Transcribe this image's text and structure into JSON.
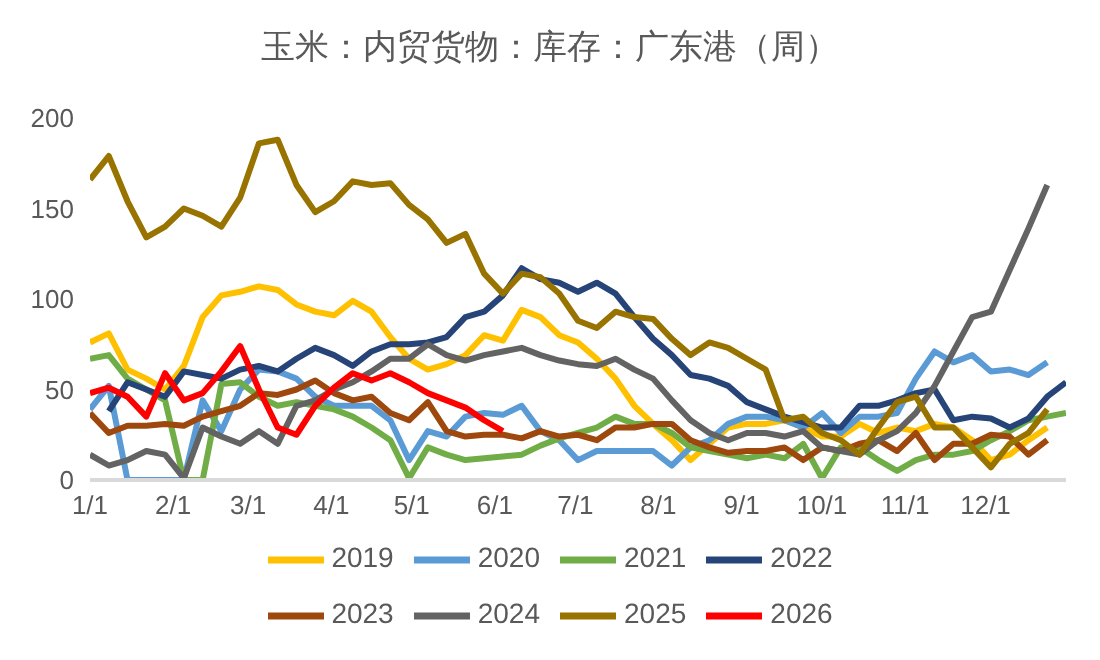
{
  "chart_data": {
    "type": "line",
    "title": "玉米：内贸货物：库存：广东港（周）",
    "x": [
      "--01-01",
      "--01-08",
      "--01-15",
      "--01-22",
      "--01-29",
      "--02-05",
      "--02-12",
      "--02-19",
      "--02-26",
      "--03-05",
      "--03-12",
      "--03-19",
      "--03-26",
      "--04-02",
      "--04-09",
      "--04-16",
      "--04-23",
      "--04-30",
      "--05-07",
      "--05-14",
      "--05-21",
      "--05-28",
      "--06-04",
      "--06-11",
      "--06-18",
      "--06-25",
      "--07-02",
      "--07-09",
      "--07-16",
      "--07-23",
      "--07-30",
      "--08-06",
      "--08-13",
      "--08-20",
      "--08-27",
      "--09-03",
      "--09-10",
      "--09-17",
      "--09-24",
      "--10-01",
      "--10-08",
      "--10-15",
      "--10-22",
      "--10-29",
      "--11-05",
      "--11-12",
      "--11-19",
      "--11-26",
      "--12-03",
      "--12-10",
      "--12-17",
      "--12-24",
      "--12-31"
    ],
    "xlim": [
      "--01-01",
      "--12-31"
    ],
    "xticks": [
      {
        "value": "--01-01",
        "label": "1/1"
      },
      {
        "value": "--02-01",
        "label": "2/1"
      },
      {
        "value": "--03-01",
        "label": "3/1"
      },
      {
        "value": "--04-01",
        "label": "4/1"
      },
      {
        "value": "--05-01",
        "label": "5/1"
      },
      {
        "value": "--06-01",
        "label": "6/1"
      },
      {
        "value": "--07-01",
        "label": "7/1"
      },
      {
        "value": "--08-01",
        "label": "8/1"
      },
      {
        "value": "--09-01",
        "label": "9/1"
      },
      {
        "value": "--10-01",
        "label": "10/1"
      },
      {
        "value": "--11-01",
        "label": "11/1"
      },
      {
        "value": "--12-01",
        "label": "12/1"
      }
    ],
    "ylim": [
      0,
      200
    ],
    "yticks": [
      0,
      50,
      100,
      150,
      200
    ],
    "grid": false,
    "legend": "bottom",
    "series": [
      {
        "name": "2019",
        "color": "#ffc000",
        "values": [
          76,
          81,
          61,
          56,
          50,
          63,
          90,
          102,
          104,
          107,
          105,
          97,
          93,
          91,
          99,
          93,
          79,
          67,
          61,
          64,
          69,
          80,
          77,
          94,
          90,
          80,
          76,
          67,
          56,
          41,
          31,
          22,
          11,
          20,
          29,
          31,
          31,
          33,
          29,
          24,
          24,
          31,
          26,
          29,
          27,
          31,
          29,
          22,
          11,
          14,
          22,
          29,
          null
        ]
      },
      {
        "name": "2020",
        "color": "#5b9bd5",
        "values": [
          39,
          52,
          0,
          0,
          0,
          0,
          44,
          27,
          50,
          61,
          60,
          56,
          46,
          41,
          41,
          41,
          33,
          11,
          27,
          24,
          35,
          37,
          36,
          41,
          27,
          22,
          11,
          16,
          16,
          16,
          16,
          8,
          18,
          22,
          31,
          35,
          35,
          33,
          29,
          37,
          26,
          35,
          35,
          37,
          56,
          71,
          65,
          69,
          60,
          61,
          58,
          65,
          null
        ]
      },
      {
        "name": "2021",
        "color": "#70ad47",
        "values": [
          67,
          69,
          56,
          50,
          44,
          0,
          0,
          53,
          54,
          46,
          41,
          43,
          41,
          39,
          35,
          29,
          22,
          1,
          18,
          14,
          11,
          12,
          13,
          14,
          19,
          23,
          26,
          29,
          35,
          31,
          31,
          26,
          18,
          16,
          14,
          12,
          14,
          12,
          20,
          1,
          18,
          18,
          11,
          5,
          11,
          14,
          14,
          16,
          22,
          27,
          33,
          35,
          37
        ]
      },
      {
        "name": "2022",
        "color": "#264478",
        "values": [
          null,
          38,
          54,
          50,
          46,
          60,
          58,
          56,
          61,
          63,
          60,
          67,
          73,
          69,
          63,
          71,
          75,
          75,
          76,
          79,
          90,
          93,
          102,
          117,
          111,
          109,
          104,
          109,
          103,
          90,
          78,
          69,
          58,
          56,
          52,
          43,
          39,
          35,
          32,
          29,
          29,
          41,
          41,
          44,
          48,
          50,
          33,
          35,
          34,
          29,
          34,
          46,
          54
        ]
      },
      {
        "name": "2023",
        "color": "#9e480e",
        "values": [
          37,
          26,
          30,
          30,
          31,
          30,
          35,
          38,
          41,
          48,
          47,
          50,
          55,
          48,
          44,
          46,
          37,
          33,
          43,
          27,
          24,
          25,
          25,
          23,
          27,
          24,
          25,
          22,
          29,
          29,
          31,
          31,
          22,
          18,
          15,
          16,
          16,
          18,
          11,
          18,
          16,
          20,
          22,
          16,
          26,
          11,
          20,
          20,
          25,
          24,
          14,
          22,
          null
        ]
      },
      {
        "name": "2024",
        "color": "#636363",
        "values": [
          14,
          8,
          11,
          16,
          14,
          1,
          29,
          24,
          20,
          27,
          20,
          41,
          44,
          50,
          54,
          60,
          67,
          67,
          75,
          69,
          66,
          69,
          71,
          73,
          69,
          66,
          64,
          63,
          67,
          61,
          56,
          44,
          33,
          26,
          22,
          26,
          26,
          24,
          27,
          18,
          16,
          14,
          22,
          27,
          37,
          52,
          71,
          90,
          93,
          116,
          139,
          163,
          null
        ]
      },
      {
        "name": "2025",
        "color": "#997300",
        "values": [
          166,
          179,
          154,
          134,
          140,
          150,
          146,
          140,
          156,
          186,
          188,
          163,
          148,
          154,
          165,
          163,
          164,
          152,
          144,
          131,
          136,
          114,
          103,
          114,
          112,
          103,
          88,
          84,
          93,
          90,
          89,
          78,
          69,
          76,
          73,
          67,
          61,
          33,
          35,
          26,
          22,
          14,
          29,
          43,
          46,
          29,
          29,
          18,
          7,
          20,
          26,
          39,
          null
        ]
      },
      {
        "name": "2026",
        "color": "#ff0000",
        "values": [
          48,
          51,
          46,
          35,
          59,
          44,
          48,
          60,
          74,
          50,
          29,
          25,
          41,
          51,
          59,
          55,
          59,
          54,
          48,
          44,
          40,
          33,
          27,
          null,
          null,
          null,
          null,
          null,
          null,
          null,
          null,
          null,
          null,
          null,
          null,
          null,
          null,
          null,
          null,
          null,
          null,
          null,
          null,
          null,
          null,
          null,
          null,
          null,
          null,
          null,
          null,
          null,
          null
        ]
      }
    ]
  }
}
